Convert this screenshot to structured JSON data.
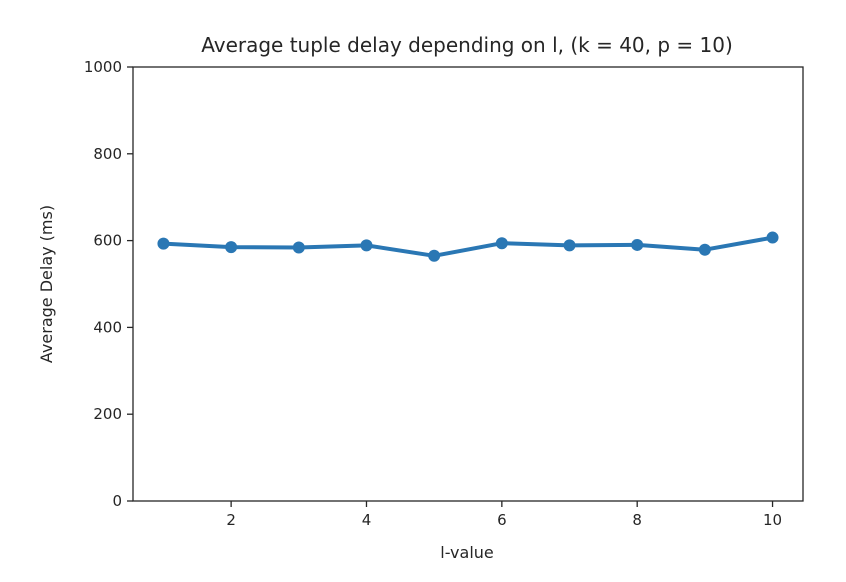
{
  "chart_data": {
    "type": "line",
    "title": "Average tuple delay depending on l, (k = 40, p = 10)",
    "xlabel": "l-value",
    "ylabel": "Average Delay (ms)",
    "x": [
      1,
      2,
      3,
      4,
      5,
      6,
      7,
      8,
      9,
      10
    ],
    "series": [
      {
        "values": [
          593,
          585,
          584,
          589,
          565,
          594,
          589,
          590,
          579,
          607
        ]
      }
    ],
    "xlim": [
      0.55,
      10.45
    ],
    "ylim": [
      0,
      1000
    ],
    "xticks": [
      "2",
      "4",
      "6",
      "8",
      "10"
    ],
    "yticks": [
      "0",
      "200",
      "400",
      "600",
      "800",
      "1000"
    ],
    "color": "#2a77b4",
    "grid": false,
    "legend": "none"
  }
}
